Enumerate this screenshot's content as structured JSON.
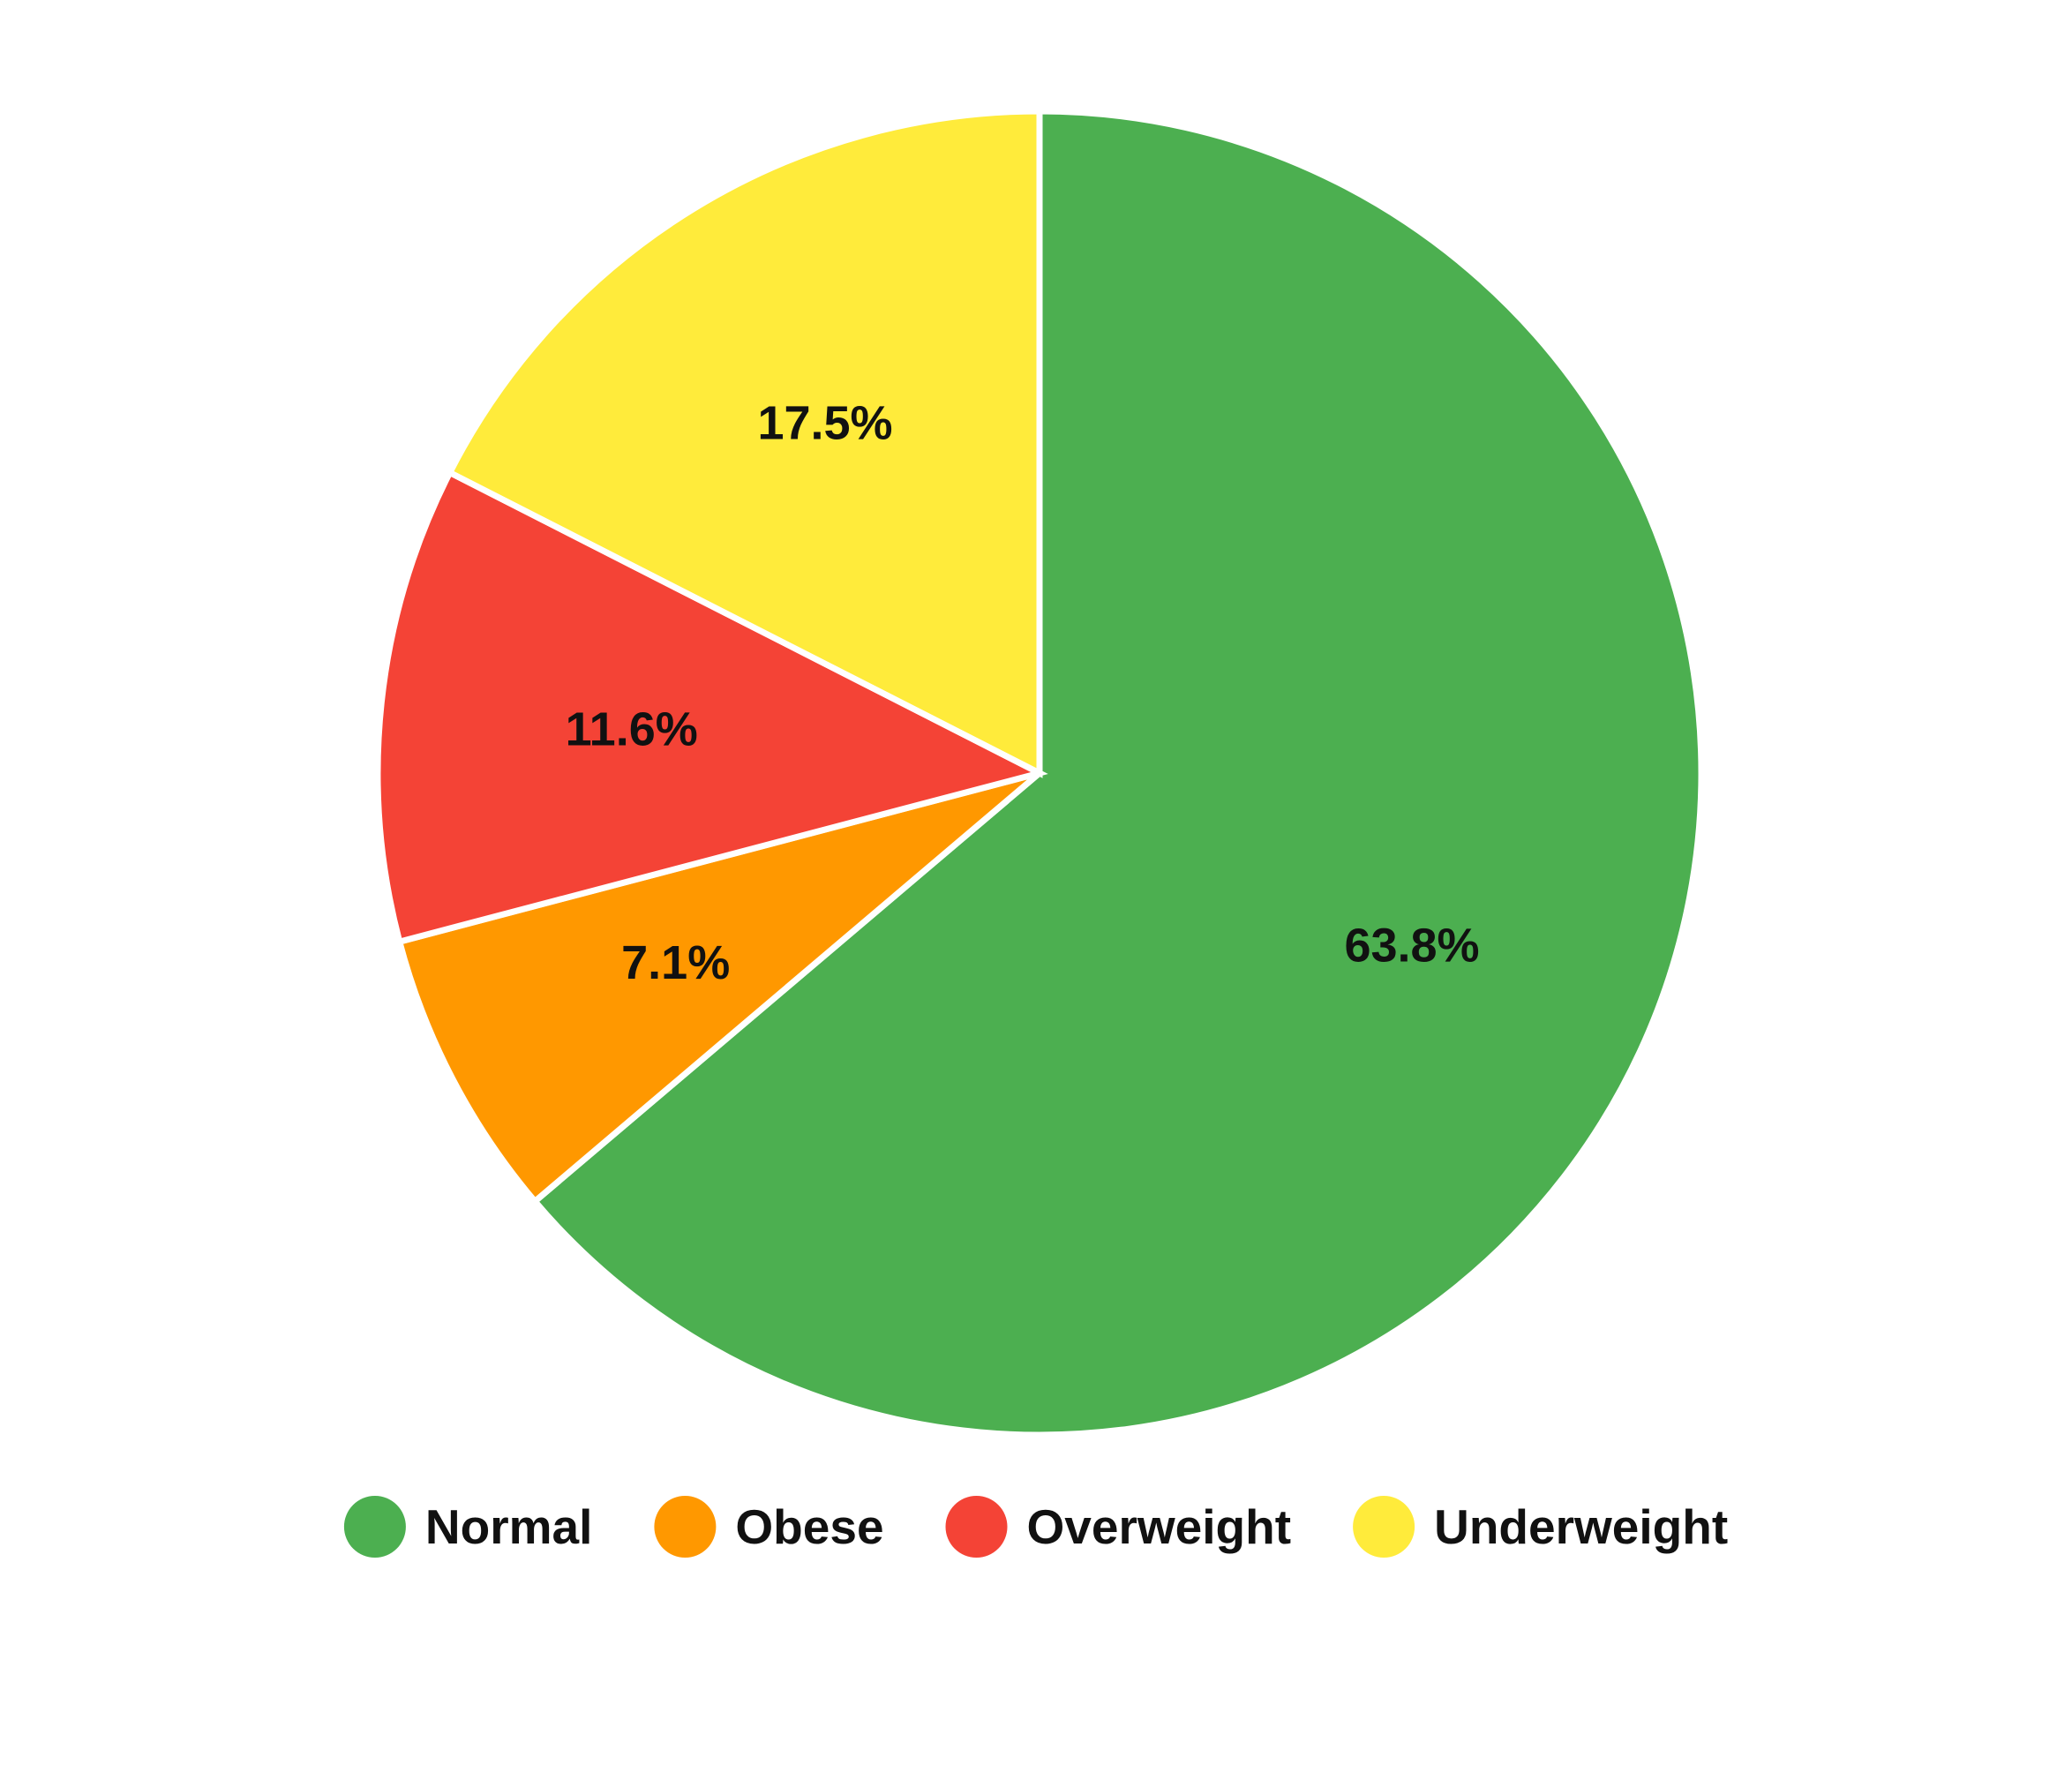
{
  "chart_data": {
    "type": "pie",
    "title": "",
    "legend_position": "bottom",
    "start_angle_deg": 0,
    "direction": "clockwise",
    "slices": [
      {
        "name": "Normal",
        "value": 63.8,
        "label": "63.8%",
        "color": "#4CAF50"
      },
      {
        "name": "Obese",
        "value": 7.1,
        "label": "7.1%",
        "color": "#FF9800"
      },
      {
        "name": "Overweight",
        "value": 11.6,
        "label": "11.6%",
        "color": "#F44336"
      },
      {
        "name": "Underweight",
        "value": 17.5,
        "label": "17.5%",
        "color": "#FFEB3B"
      }
    ]
  }
}
